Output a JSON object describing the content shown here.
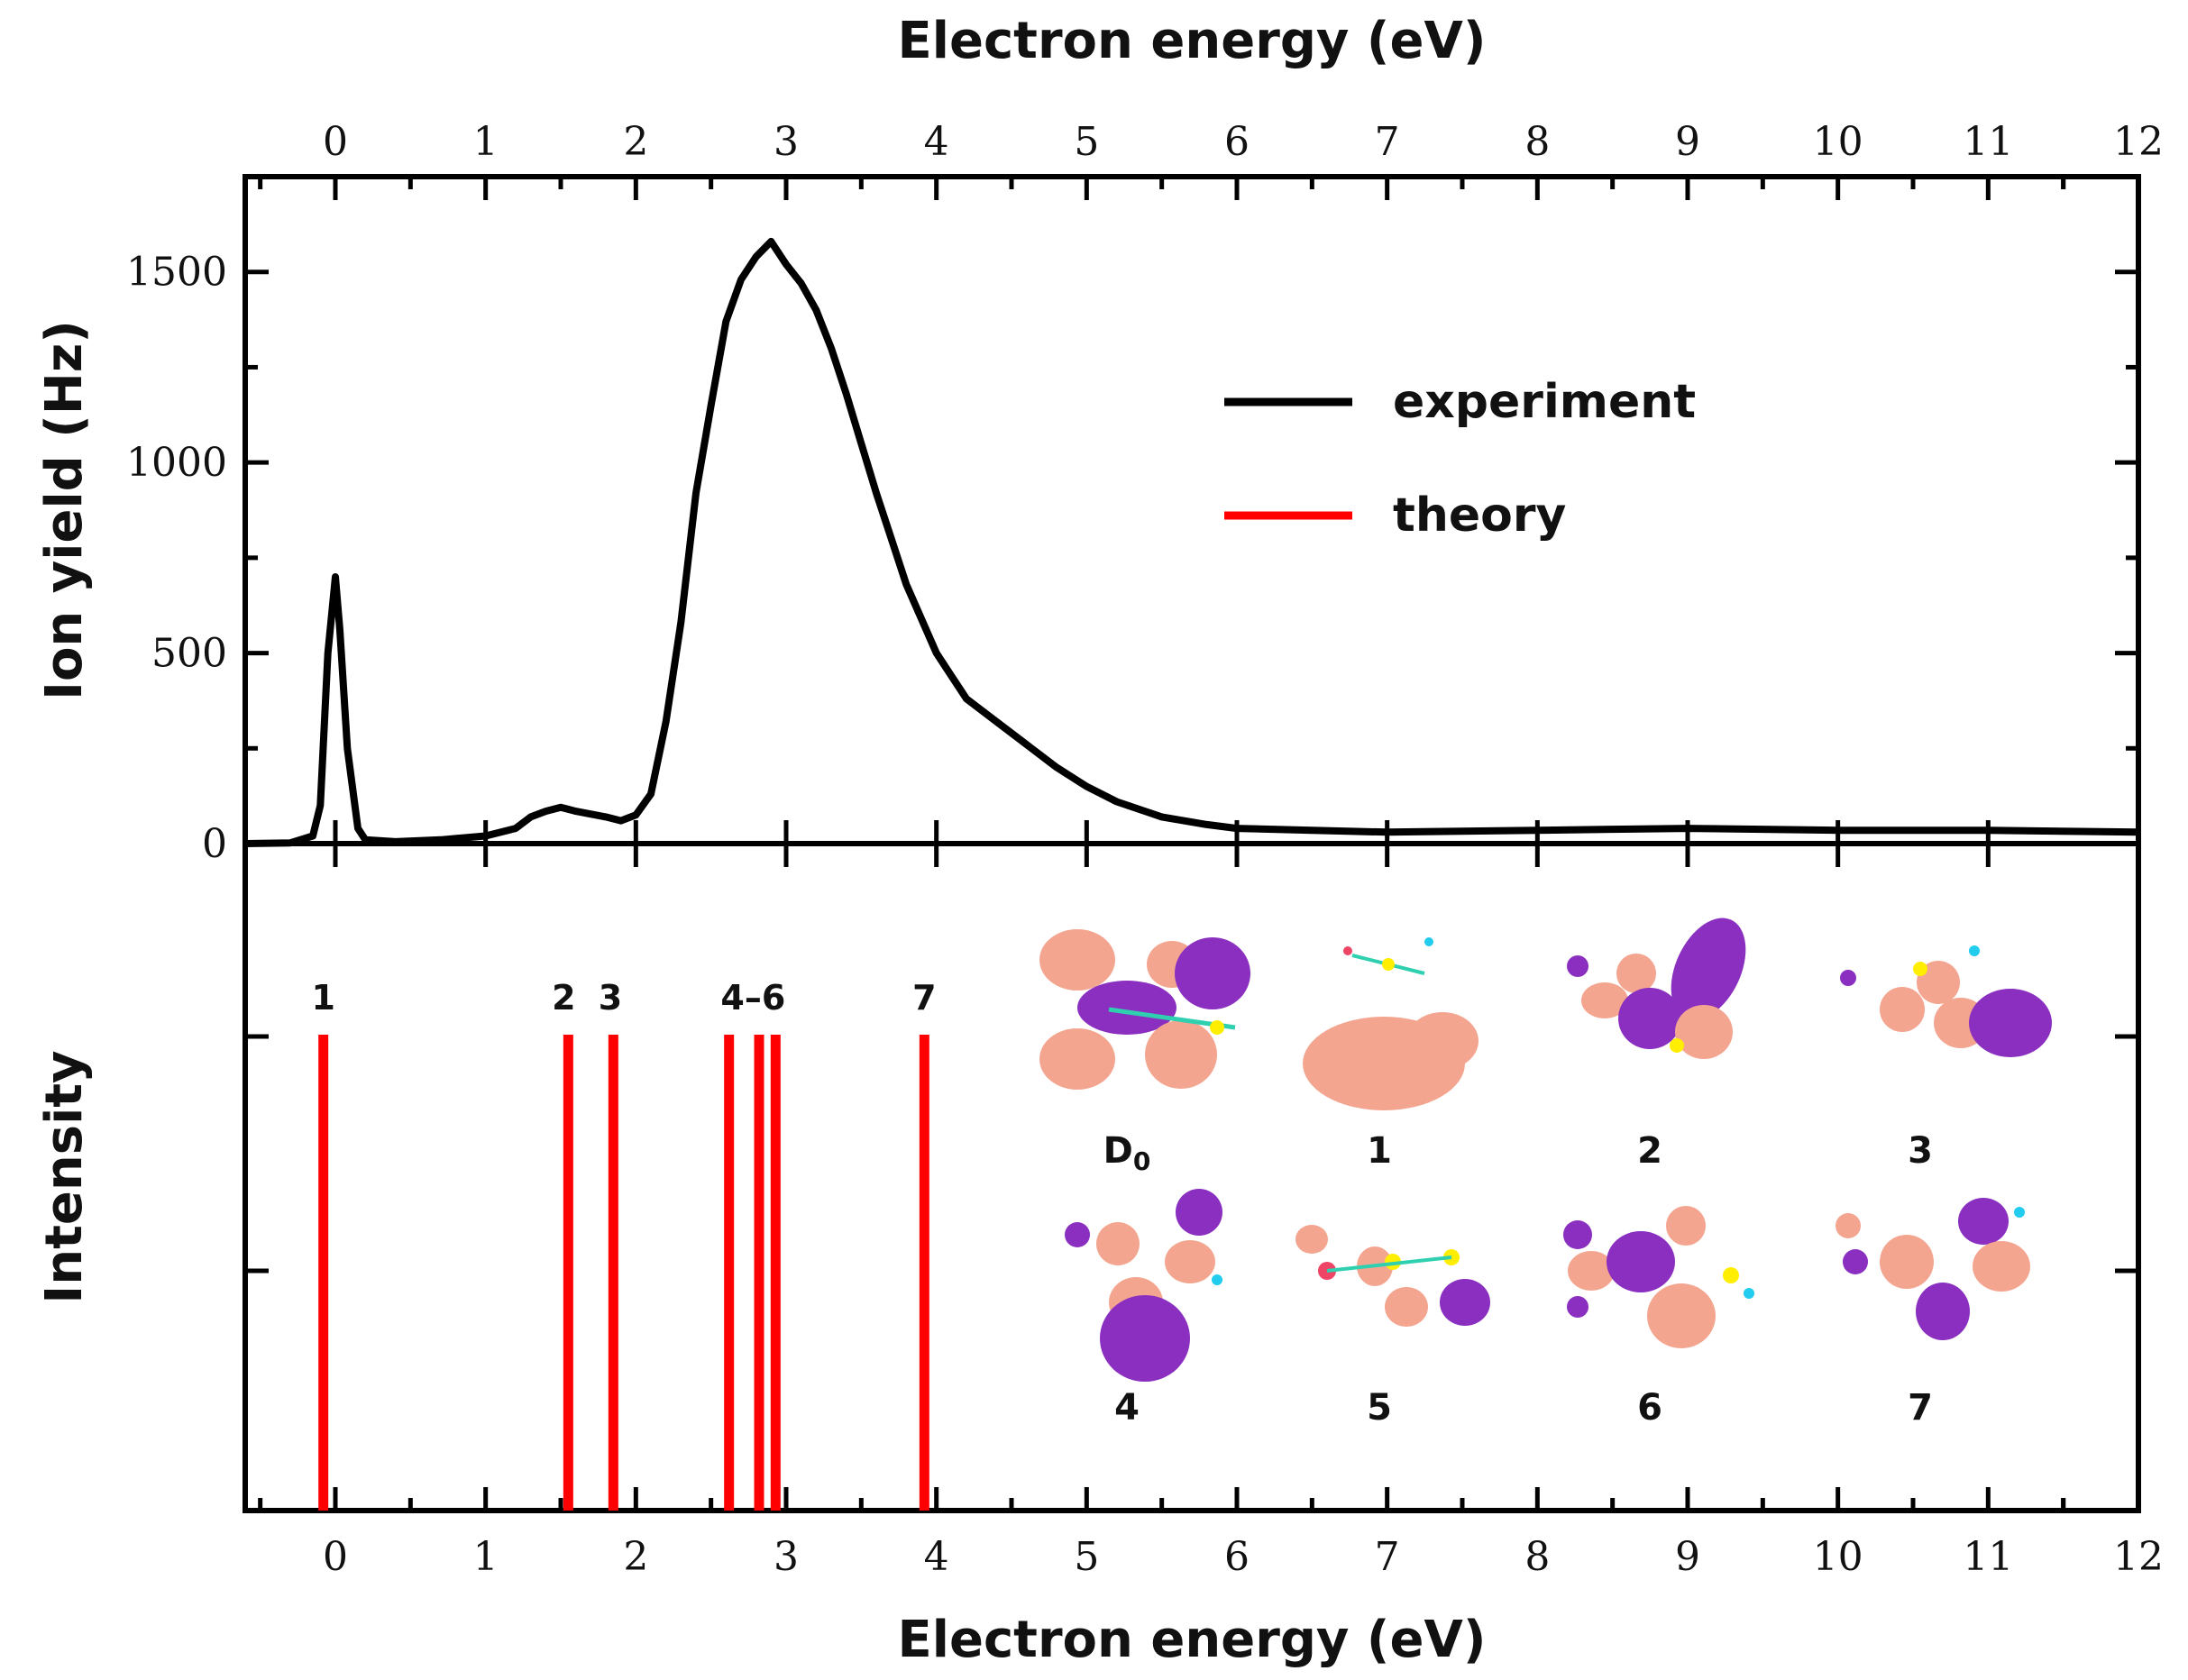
{
  "chart_data": {
    "type": "line",
    "x_axis_top": {
      "label": "Electron energy (eV)",
      "ticks": [
        0,
        1,
        2,
        3,
        4,
        5,
        6,
        7,
        8,
        9,
        10,
        11,
        12
      ],
      "range": [
        -0.6,
        12
      ]
    },
    "x_axis_bottom": {
      "label": "Electron energy (eV)",
      "ticks": [
        0,
        1,
        2,
        3,
        4,
        5,
        6,
        7,
        8,
        9,
        10,
        11,
        12
      ],
      "range": [
        -0.6,
        12
      ]
    },
    "panels": [
      {
        "name": "top",
        "ylabel": "Ion yield (Hz)",
        "yticks": [
          0,
          500,
          1000,
          1500
        ],
        "ylim": [
          0,
          1750
        ],
        "legend": {
          "placement": "top-right",
          "entries": [
            {
              "label": "experiment",
              "color": "#000000"
            },
            {
              "label": "theory",
              "color": "#ff0000"
            }
          ]
        },
        "series": [
          {
            "name": "experiment",
            "color": "#000000",
            "x": [
              -0.6,
              -0.3,
              -0.15,
              -0.1,
              -0.05,
              0.0,
              0.03,
              0.08,
              0.15,
              0.2,
              0.4,
              0.7,
              1.0,
              1.2,
              1.3,
              1.4,
              1.5,
              1.6,
              1.8,
              1.9,
              2.0,
              2.1,
              2.2,
              2.3,
              2.4,
              2.5,
              2.6,
              2.7,
              2.8,
              2.9,
              3.0,
              3.1,
              3.2,
              3.3,
              3.4,
              3.5,
              3.6,
              3.7,
              3.8,
              3.9,
              4.0,
              4.1,
              4.2,
              4.4,
              4.6,
              4.8,
              5.0,
              5.2,
              5.5,
              5.8,
              6.0,
              6.5,
              7.0,
              8.0,
              9.0,
              10.0,
              11.0,
              12.0
            ],
            "y": [
              0,
              2,
              20,
              100,
              500,
              700,
              560,
              250,
              40,
              10,
              5,
              10,
              20,
              40,
              70,
              85,
              95,
              85,
              70,
              60,
              75,
              130,
              320,
              580,
              920,
              1150,
              1370,
              1480,
              1540,
              1580,
              1520,
              1470,
              1400,
              1300,
              1180,
              1050,
              920,
              800,
              680,
              590,
              500,
              440,
              380,
              320,
              260,
              200,
              150,
              110,
              70,
              50,
              40,
              35,
              30,
              35,
              40,
              35,
              35,
              30
            ]
          }
        ]
      },
      {
        "name": "bottom",
        "ylabel": "Intensity",
        "series": [
          {
            "name": "theory",
            "color": "#ff0000",
            "type": "stick",
            "x": [
              -0.08,
              1.55,
              1.85,
              2.62,
              2.82,
              2.93,
              3.92
            ],
            "y": [
              1,
              1,
              1,
              1,
              1,
              1,
              1
            ]
          }
        ],
        "annotations": [
          {
            "text": "1",
            "x": -0.08
          },
          {
            "text": "2",
            "x": 1.52
          },
          {
            "text": "3",
            "x": 1.83
          },
          {
            "text": "4–6",
            "x": 2.78
          },
          {
            "text": "7",
            "x": 3.92
          }
        ],
        "orbital_labels": [
          "D0",
          "1",
          "2",
          "3",
          "4",
          "5",
          "6",
          "7"
        ]
      }
    ]
  },
  "colors": {
    "orbital_positive": "#f4a590",
    "orbital_negative": "#8a2fc0",
    "bond": "#2fd0b0",
    "atom_s": "#ffee00",
    "atom_h": "#22ccee",
    "atom_o": "#ee4466"
  }
}
